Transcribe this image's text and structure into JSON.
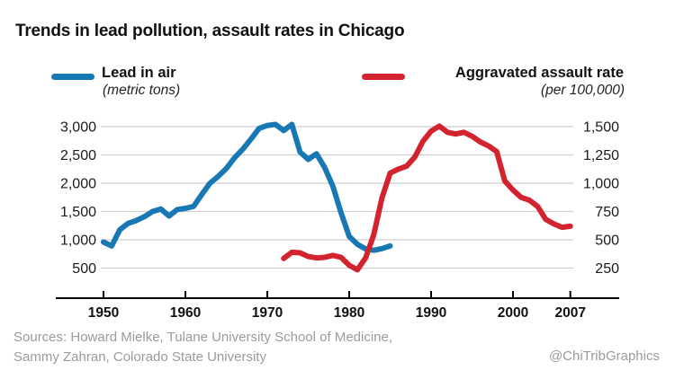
{
  "chart_data": {
    "type": "line",
    "title": "Trends in lead pollution, assault rates in Chicago",
    "x_axis": {
      "tick_years": [
        1950,
        1960,
        1970,
        1980,
        1990,
        2000,
        2007
      ],
      "tick_labels": [
        "1950",
        "1960",
        "1970",
        "1980",
        "1990",
        "2000",
        "2007"
      ],
      "range": [
        1950,
        2007
      ]
    },
    "axes": {
      "left": {
        "tick_values": [
          3000,
          2500,
          2000,
          1500,
          1000,
          500
        ],
        "tick_labels": [
          "3,000",
          "2,500",
          "2,000",
          "1,500",
          "1,000",
          "500"
        ],
        "top_value": 3000,
        "step": 500
      },
      "right": {
        "tick_values": [
          1500,
          1250,
          1000,
          750,
          500,
          250
        ],
        "tick_labels": [
          "1,500",
          "1,250",
          "1,000",
          "750",
          "500",
          "250"
        ],
        "top_value": 1500,
        "step": 250
      }
    },
    "grid": true,
    "legend_position": "top",
    "series": [
      {
        "name": "Lead in air",
        "unit_label": "(metric tons)",
        "axis": "left",
        "color": "#1878b4",
        "points": [
          [
            1950,
            960
          ],
          [
            1951,
            890
          ],
          [
            1952,
            1180
          ],
          [
            1953,
            1290
          ],
          [
            1954,
            1340
          ],
          [
            1955,
            1410
          ],
          [
            1956,
            1500
          ],
          [
            1957,
            1545
          ],
          [
            1958,
            1420
          ],
          [
            1959,
            1535
          ],
          [
            1960,
            1555
          ],
          [
            1961,
            1590
          ],
          [
            1962,
            1800
          ],
          [
            1963,
            2000
          ],
          [
            1964,
            2120
          ],
          [
            1965,
            2260
          ],
          [
            1966,
            2450
          ],
          [
            1967,
            2600
          ],
          [
            1968,
            2780
          ],
          [
            1969,
            2970
          ],
          [
            1970,
            3020
          ],
          [
            1971,
            3040
          ],
          [
            1972,
            2930
          ],
          [
            1973,
            3040
          ],
          [
            1974,
            2550
          ],
          [
            1975,
            2420
          ],
          [
            1976,
            2520
          ],
          [
            1977,
            2280
          ],
          [
            1978,
            1950
          ],
          [
            1979,
            1480
          ],
          [
            1980,
            1060
          ],
          [
            1981,
            920
          ],
          [
            1982,
            840
          ],
          [
            1983,
            815
          ],
          [
            1984,
            845
          ],
          [
            1985,
            890
          ]
        ]
      },
      {
        "name": "Aggravated assault rate",
        "unit_label": "(per 100,000)",
        "axis": "right",
        "color": "#d2232f",
        "points": [
          [
            1972,
            335
          ],
          [
            1973,
            390
          ],
          [
            1974,
            385
          ],
          [
            1975,
            352
          ],
          [
            1976,
            340
          ],
          [
            1977,
            345
          ],
          [
            1978,
            362
          ],
          [
            1979,
            345
          ],
          [
            1980,
            275
          ],
          [
            1981,
            235
          ],
          [
            1982,
            340
          ],
          [
            1983,
            545
          ],
          [
            1984,
            870
          ],
          [
            1985,
            1090
          ],
          [
            1986,
            1125
          ],
          [
            1987,
            1150
          ],
          [
            1988,
            1230
          ],
          [
            1989,
            1370
          ],
          [
            1990,
            1460
          ],
          [
            1991,
            1505
          ],
          [
            1992,
            1450
          ],
          [
            1993,
            1435
          ],
          [
            1994,
            1450
          ],
          [
            1995,
            1415
          ],
          [
            1996,
            1365
          ],
          [
            1997,
            1330
          ],
          [
            1998,
            1280
          ],
          [
            1999,
            1020
          ],
          [
            2000,
            940
          ],
          [
            2001,
            875
          ],
          [
            2002,
            850
          ],
          [
            2003,
            795
          ],
          [
            2004,
            680
          ],
          [
            2005,
            640
          ],
          [
            2006,
            610
          ],
          [
            2007,
            620
          ]
        ]
      }
    ],
    "colors": {
      "gridline": "#cfcfcf",
      "axis_line": "#000000",
      "tick_label": "#111111",
      "axis_label": "#1a1a1a"
    }
  },
  "footer": {
    "sources_line1": "Sources: Howard Mielke, Tulane University School of Medicine,",
    "sources_line2": "Sammy Zahran, Colorado State University",
    "credit": "@ChiTribGraphics"
  }
}
